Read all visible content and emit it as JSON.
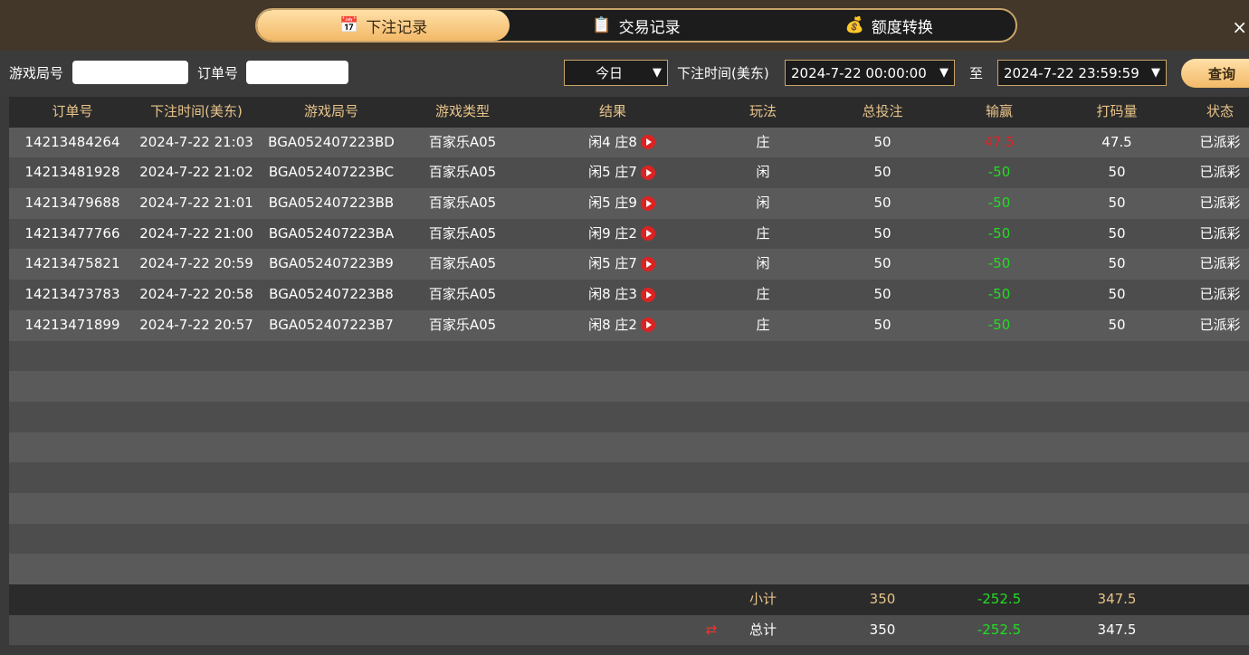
{
  "tabs": [
    {
      "label": "下注记录",
      "icon": "calendar-icon",
      "active": true
    },
    {
      "label": "交易记录",
      "icon": "clipboard-icon"
    },
    {
      "label": "额度转换",
      "icon": "coins-icon"
    }
  ],
  "close": "×",
  "filter": {
    "game_no_label": "游戏局号",
    "game_no_value": "",
    "order_no_label": "订单号",
    "order_no_value": "",
    "period": "今日",
    "time_label": "下注时间(美东)",
    "start": "2024-7-22 00:00:00",
    "to": "至",
    "end": "2024-7-22 23:59:59",
    "query": "查询"
  },
  "columns": [
    "订单号",
    "下注时间(美东)",
    "游戏局号",
    "游戏类型",
    "结果",
    "玩法",
    "总投注",
    "输赢",
    "打码量",
    "状态"
  ],
  "rows": [
    [
      "14213484264",
      "2024-7-22 21:03",
      "BGA052407223BD",
      "百家乐A05",
      "闲4 庄8",
      "庄",
      "50",
      "47.5",
      "47.5",
      "已派彩"
    ],
    [
      "14213481928",
      "2024-7-22 21:02",
      "BGA052407223BC",
      "百家乐A05",
      "闲5 庄7",
      "闲",
      "50",
      "-50",
      "50",
      "已派彩"
    ],
    [
      "14213479688",
      "2024-7-22 21:01",
      "BGA052407223BB",
      "百家乐A05",
      "闲5 庄9",
      "闲",
      "50",
      "-50",
      "50",
      "已派彩"
    ],
    [
      "14213477766",
      "2024-7-22 21:00",
      "BGA052407223BA",
      "百家乐A05",
      "闲9 庄2",
      "庄",
      "50",
      "-50",
      "50",
      "已派彩"
    ],
    [
      "14213475821",
      "2024-7-22 20:59",
      "BGA052407223B9",
      "百家乐A05",
      "闲5 庄7",
      "闲",
      "50",
      "-50",
      "50",
      "已派彩"
    ],
    [
      "14213473783",
      "2024-7-22 20:58",
      "BGA052407223B8",
      "百家乐A05",
      "闲8 庄3",
      "庄",
      "50",
      "-50",
      "50",
      "已派彩"
    ],
    [
      "14213471899",
      "2024-7-22 20:57",
      "BGA052407223B7",
      "百家乐A05",
      "闲8 庄2",
      "庄",
      "50",
      "-50",
      "50",
      "已派彩"
    ]
  ],
  "subtotal": {
    "label": "小计",
    "bet": "350",
    "winloss": "-252.5",
    "turnover": "347.5"
  },
  "total": {
    "label": "总计",
    "bet": "350",
    "winloss": "-252.5",
    "turnover": "347.5"
  },
  "colors": {
    "gold": "#e8c48a",
    "win": "#e02020",
    "loss": "#22dd22"
  }
}
